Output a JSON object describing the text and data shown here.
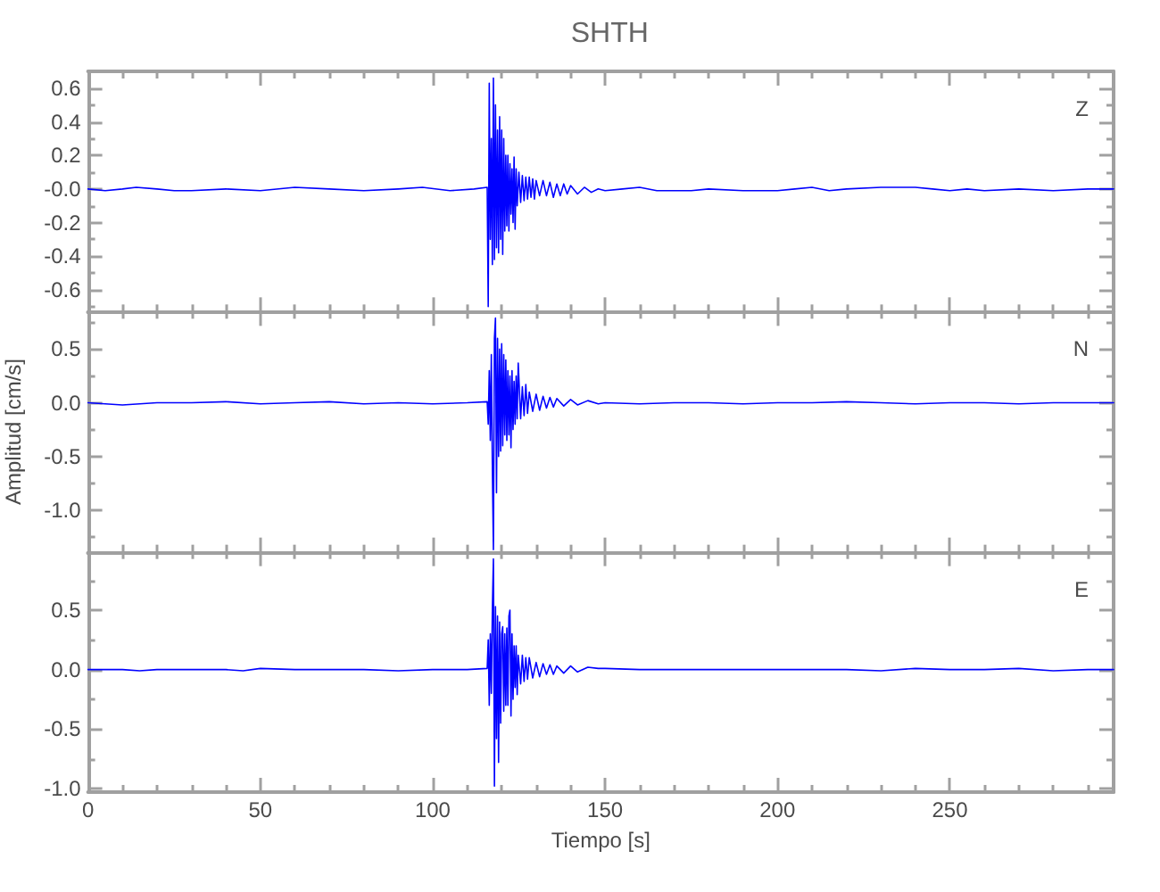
{
  "chart_data": [
    {
      "type": "line",
      "title": "SHTH",
      "annotations": [
        "Z"
      ],
      "color": "#0000ff",
      "tick_labels": "y",
      "xlim": [
        0,
        297.5
      ],
      "ylim": [
        -0.73,
        0.7
      ],
      "xticks": [
        0,
        {
          "value": 10,
          "label": null
        },
        {
          "value": 20,
          "label": null
        },
        {
          "value": 30,
          "label": null
        },
        {
          "value": 40,
          "label": null
        },
        50,
        {
          "value": 60,
          "label": null
        },
        {
          "value": 70,
          "label": null
        },
        {
          "value": 80,
          "label": null
        },
        {
          "value": 90,
          "label": null
        },
        100,
        {
          "value": 110,
          "label": null
        },
        {
          "value": 120,
          "label": null
        },
        {
          "value": 130,
          "label": null
        },
        {
          "value": 140,
          "label": null
        },
        150,
        {
          "value": 160,
          "label": null
        },
        {
          "value": 170,
          "label": null
        },
        {
          "value": 180,
          "label": null
        },
        {
          "value": 190,
          "label": null
        },
        200,
        {
          "value": 210,
          "label": null
        },
        {
          "value": 220,
          "label": null
        },
        {
          "value": 230,
          "label": null
        },
        {
          "value": 240,
          "label": null
        },
        250,
        {
          "value": 260,
          "label": null
        },
        {
          "value": 270,
          "label": null
        },
        {
          "value": 280,
          "label": null
        },
        {
          "value": 290,
          "label": null
        }
      ],
      "yticks": [
        {
          "value": -0.7,
          "label": null
        },
        -0.6,
        {
          "value": -0.5,
          "label": null
        },
        -0.4,
        {
          "value": -0.3,
          "label": null
        },
        -0.2,
        {
          "value": -0.1,
          "label": null
        },
        {
          "value": 0,
          "label": "-0.0"
        },
        {
          "value": 0.1,
          "label": null
        },
        0.2,
        {
          "value": 0.3,
          "label": null
        },
        0.4,
        {
          "value": 0.5,
          "label": null
        },
        0.6
      ],
      "x": [
        0,
        5,
        10,
        14,
        20,
        25,
        30,
        40,
        50,
        60,
        70,
        80,
        90,
        97,
        105,
        112,
        115.8,
        116.1,
        116.4,
        116.7,
        117.0,
        117.3,
        117.6,
        117.9,
        118.2,
        118.5,
        118.8,
        119.1,
        119.4,
        119.7,
        120.0,
        120.3,
        120.6,
        120.9,
        121.2,
        121.5,
        121.8,
        122.1,
        122.4,
        122.7,
        123.0,
        123.3,
        123.6,
        123.9,
        124.2,
        124.5,
        125,
        125.5,
        126,
        126.5,
        127,
        127.5,
        128,
        128.5,
        129,
        129.5,
        130,
        131,
        132,
        133,
        134,
        135,
        136,
        137,
        138,
        139,
        140,
        142,
        144,
        146,
        148,
        150,
        155,
        160,
        165,
        170,
        175,
        180,
        190,
        200,
        205,
        210,
        215,
        220,
        230,
        240,
        245,
        250,
        255,
        260,
        270,
        280,
        290,
        297.5
      ],
      "values": [
        0,
        -0.01,
        0,
        0.01,
        0,
        -0.01,
        -0.01,
        0,
        -0.01,
        0.01,
        0,
        -0.01,
        0,
        0.01,
        -0.01,
        0,
        0.01,
        -0.7,
        0.63,
        -0.3,
        0.3,
        -0.45,
        0.66,
        -0.42,
        0.5,
        -0.35,
        0.35,
        -0.38,
        0.43,
        -0.3,
        0.35,
        -0.39,
        0.3,
        -0.25,
        0.2,
        -0.22,
        0.2,
        -0.25,
        0.15,
        -0.15,
        0.12,
        -0.2,
        0.19,
        -0.24,
        0.12,
        -0.1,
        0.1,
        -0.08,
        0.08,
        -0.07,
        0.07,
        -0.06,
        0.07,
        -0.05,
        0.06,
        -0.06,
        0.05,
        -0.04,
        0.05,
        -0.04,
        0.04,
        -0.05,
        0.03,
        -0.04,
        0.03,
        -0.03,
        0.02,
        -0.03,
        0.01,
        -0.02,
        0,
        -0.01,
        0,
        0.01,
        -0.01,
        -0.01,
        -0.01,
        0,
        -0.01,
        -0.01,
        0,
        0.01,
        -0.01,
        0,
        0.01,
        0.01,
        0,
        -0.01,
        0,
        -0.01,
        0,
        -0.01,
        0,
        0
      ]
    },
    {
      "type": "line",
      "ylabel": "Amplitud [cm/s]",
      "annotations": [
        "N"
      ],
      "color": "#0000ff",
      "tick_labels": "y",
      "xlim": [
        0,
        297.5
      ],
      "ylim": [
        -1.39,
        0.85
      ],
      "xticks": [
        0,
        {
          "value": 10,
          "label": null
        },
        {
          "value": 20,
          "label": null
        },
        {
          "value": 30,
          "label": null
        },
        {
          "value": 40,
          "label": null
        },
        50,
        {
          "value": 60,
          "label": null
        },
        {
          "value": 70,
          "label": null
        },
        {
          "value": 80,
          "label": null
        },
        {
          "value": 90,
          "label": null
        },
        100,
        {
          "value": 110,
          "label": null
        },
        {
          "value": 120,
          "label": null
        },
        {
          "value": 130,
          "label": null
        },
        {
          "value": 140,
          "label": null
        },
        150,
        {
          "value": 160,
          "label": null
        },
        {
          "value": 170,
          "label": null
        },
        {
          "value": 180,
          "label": null
        },
        {
          "value": 190,
          "label": null
        },
        200,
        {
          "value": 210,
          "label": null
        },
        {
          "value": 220,
          "label": null
        },
        {
          "value": 230,
          "label": null
        },
        {
          "value": 240,
          "label": null
        },
        250,
        {
          "value": 260,
          "label": null
        },
        {
          "value": 270,
          "label": null
        },
        {
          "value": 280,
          "label": null
        },
        {
          "value": 290,
          "label": null
        }
      ],
      "yticks": [
        {
          "value": -1.25,
          "label": null
        },
        {
          "value": -1,
          "label": "-1.0"
        },
        {
          "value": -0.75,
          "label": null
        },
        -0.5,
        {
          "value": -0.25,
          "label": null
        },
        {
          "value": 0,
          "label": "0.0"
        },
        {
          "value": 0.25,
          "label": null
        },
        0.5,
        {
          "value": 0.75,
          "label": null
        }
      ],
      "x": [
        0,
        5,
        10,
        15,
        20,
        30,
        40,
        50,
        60,
        70,
        80,
        90,
        100,
        110,
        115.8,
        116.1,
        116.4,
        116.7,
        117.0,
        117.3,
        117.6,
        117.9,
        118.2,
        118.5,
        118.8,
        119.1,
        119.4,
        119.7,
        120.0,
        120.3,
        120.6,
        120.9,
        121.2,
        121.5,
        121.8,
        122.1,
        122.4,
        122.7,
        123.0,
        123.3,
        123.6,
        123.9,
        124.2,
        124.5,
        124.8,
        125.5,
        126,
        126.5,
        127,
        127.5,
        128,
        129,
        130,
        131,
        132,
        133,
        134,
        135,
        136,
        138,
        140,
        142,
        145,
        148,
        150,
        160,
        170,
        180,
        190,
        200,
        210,
        220,
        230,
        240,
        250,
        260,
        270,
        280,
        290,
        297.5
      ],
      "values": [
        0,
        -0.01,
        -0.02,
        -0.01,
        0,
        0,
        0.01,
        -0.01,
        0,
        0.01,
        -0.01,
        0,
        -0.01,
        0,
        0.01,
        -0.2,
        0.3,
        -0.35,
        0.45,
        -0.6,
        -1.37,
        0.6,
        0.79,
        -0.84,
        0.6,
        -0.5,
        0.5,
        -0.45,
        0.55,
        -0.4,
        0.45,
        -0.3,
        0.4,
        -0.35,
        0.3,
        -0.3,
        0.25,
        -0.42,
        0.3,
        -0.25,
        0.2,
        -0.2,
        0.25,
        -0.15,
        0.37,
        -0.15,
        0.15,
        -0.12,
        0.17,
        -0.1,
        0.1,
        -0.08,
        0.08,
        -0.07,
        0.06,
        -0.05,
        0.05,
        -0.04,
        0.04,
        -0.03,
        0.03,
        -0.02,
        0.02,
        -0.01,
        0,
        -0.01,
        0,
        0,
        -0.01,
        0,
        0,
        0.01,
        0,
        -0.01,
        0,
        0,
        -0.01,
        0,
        0,
        0
      ]
    },
    {
      "type": "line",
      "xlabel": "Tiempo [s]",
      "annotations": [
        "E"
      ],
      "color": "#0000ff",
      "xlim": [
        0,
        297.5
      ],
      "ylim": [
        -1.03,
        0.99
      ],
      "xticks": [
        0,
        {
          "value": 10,
          "label": null
        },
        {
          "value": 20,
          "label": null
        },
        {
          "value": 30,
          "label": null
        },
        {
          "value": 40,
          "label": null
        },
        50,
        {
          "value": 60,
          "label": null
        },
        {
          "value": 70,
          "label": null
        },
        {
          "value": 80,
          "label": null
        },
        {
          "value": 90,
          "label": null
        },
        100,
        {
          "value": 110,
          "label": null
        },
        {
          "value": 120,
          "label": null
        },
        {
          "value": 130,
          "label": null
        },
        {
          "value": 140,
          "label": null
        },
        150,
        {
          "value": 160,
          "label": null
        },
        {
          "value": 170,
          "label": null
        },
        {
          "value": 180,
          "label": null
        },
        {
          "value": 190,
          "label": null
        },
        200,
        {
          "value": 210,
          "label": null
        },
        {
          "value": 220,
          "label": null
        },
        {
          "value": 230,
          "label": null
        },
        {
          "value": 240,
          "label": null
        },
        250,
        {
          "value": 260,
          "label": null
        },
        {
          "value": 270,
          "label": null
        },
        {
          "value": 280,
          "label": null
        },
        {
          "value": 290,
          "label": null
        }
      ],
      "yticks": [
        {
          "value": -1,
          "label": "-1.0"
        },
        {
          "value": -0.75,
          "label": null
        },
        -0.5,
        {
          "value": -0.25,
          "label": null
        },
        {
          "value": 0,
          "label": "0.0"
        },
        {
          "value": 0.25,
          "label": null
        },
        0.5,
        {
          "value": 0.75,
          "label": null
        }
      ],
      "x": [
        0,
        10,
        15,
        20,
        30,
        40,
        45,
        50,
        60,
        70,
        80,
        90,
        100,
        110,
        115.8,
        116.1,
        116.4,
        116.7,
        117.0,
        117.3,
        117.6,
        117.9,
        118.2,
        118.5,
        118.8,
        119.1,
        119.4,
        119.7,
        120.0,
        120.3,
        120.6,
        120.9,
        121.2,
        121.5,
        121.8,
        122.1,
        122.4,
        122.7,
        123.0,
        123.3,
        123.6,
        123.9,
        124.2,
        124.5,
        124.8,
        125.5,
        126,
        126.5,
        127,
        127.5,
        128,
        129,
        130,
        131,
        132,
        133,
        134,
        135,
        136,
        138,
        140,
        142,
        145,
        148,
        150,
        160,
        170,
        180,
        190,
        200,
        210,
        220,
        230,
        240,
        250,
        260,
        270,
        280,
        290,
        297.5
      ],
      "values": [
        0,
        0,
        -0.01,
        0,
        0,
        0,
        -0.01,
        0.01,
        0,
        0,
        0,
        -0.01,
        0,
        0,
        0.01,
        0.25,
        -0.3,
        0.3,
        -0.2,
        0.5,
        0.93,
        -0.98,
        0.53,
        -0.58,
        0.45,
        -0.78,
        0.4,
        -0.45,
        0.3,
        0.36,
        -0.35,
        0.3,
        -0.3,
        0.35,
        -0.3,
        0.45,
        0.5,
        -0.39,
        0.3,
        -0.25,
        0.2,
        -0.15,
        0.2,
        -0.21,
        0.12,
        -0.12,
        0.12,
        -0.1,
        0.1,
        -0.08,
        0.1,
        -0.07,
        0.06,
        -0.06,
        0.05,
        -0.04,
        0.04,
        -0.04,
        0.03,
        -0.03,
        0.03,
        -0.02,
        0.02,
        0.01,
        0.01,
        0,
        0,
        0,
        0,
        0,
        0,
        0,
        -0.01,
        0.01,
        0,
        0,
        0.01,
        -0.01,
        0,
        0
      ]
    }
  ]
}
